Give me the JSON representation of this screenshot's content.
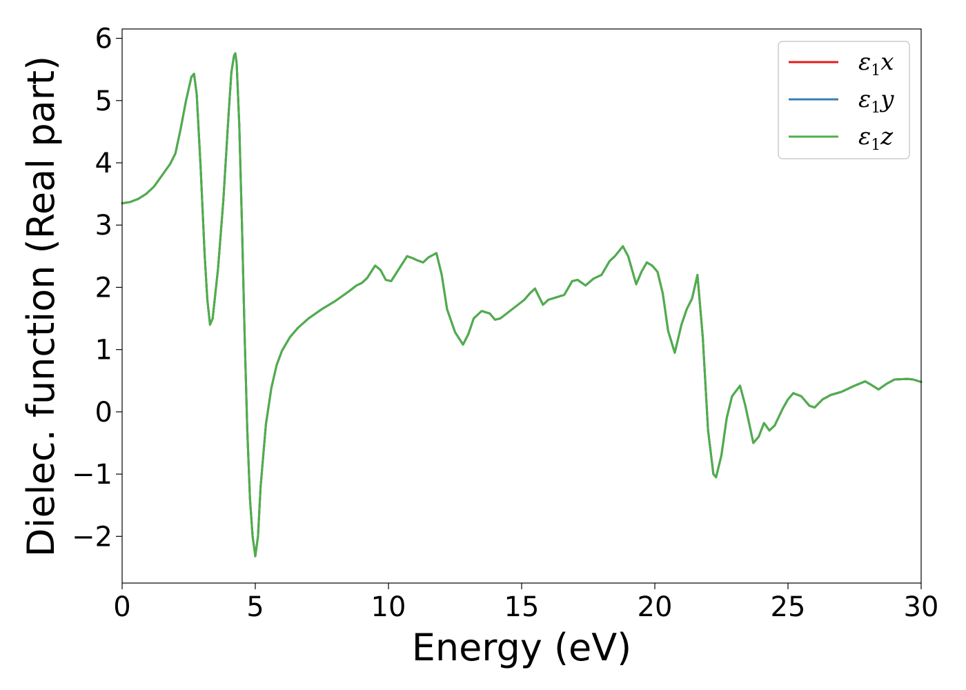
{
  "chart_data": {
    "type": "line",
    "title": "",
    "xlabel": "Energy (eV)",
    "ylabel": "Dielec. function (Real part)",
    "xlim": [
      0,
      30
    ],
    "ylim": [
      -2.75,
      6.15
    ],
    "xticks": [
      0,
      5,
      10,
      15,
      20,
      25,
      30
    ],
    "yticks": [
      -2,
      -1,
      0,
      1,
      2,
      3,
      4,
      5,
      6
    ],
    "xtick_labels": [
      "0",
      "5",
      "10",
      "15",
      "20",
      "25",
      "30"
    ],
    "ytick_labels": [
      "−2",
      "−1",
      "0",
      "1",
      "2",
      "3",
      "4",
      "5",
      "6"
    ],
    "grid": false,
    "legend_position": "top-right",
    "legend": [
      {
        "symbol": "ε",
        "sub": "1",
        "suffix": "x",
        "color": "#e41a1c"
      },
      {
        "symbol": "ε",
        "sub": "1",
        "suffix": "y",
        "color": "#377eb8"
      },
      {
        "symbol": "ε",
        "sub": "1",
        "suffix": "z",
        "color": "#4daf4a"
      }
    ],
    "series": [
      {
        "color": "#e41a1c",
        "values_ref": "shared"
      },
      {
        "color": "#377eb8",
        "values_ref": "shared"
      },
      {
        "color": "#4daf4a",
        "values_ref": "shared"
      }
    ],
    "x": [
      0,
      0.3,
      0.6,
      0.9,
      1.2,
      1.5,
      1.8,
      2.0,
      2.2,
      2.4,
      2.6,
      2.7,
      2.8,
      2.95,
      3.1,
      3.2,
      3.3,
      3.4,
      3.6,
      3.8,
      4.0,
      4.1,
      4.2,
      4.25,
      4.3,
      4.4,
      4.5,
      4.6,
      4.7,
      4.8,
      4.9,
      5.0,
      5.1,
      5.2,
      5.4,
      5.6,
      5.8,
      6.0,
      6.3,
      6.6,
      7.0,
      7.5,
      8.0,
      8.5,
      8.8,
      9.0,
      9.2,
      9.5,
      9.7,
      9.9,
      10.1,
      10.4,
      10.7,
      10.9,
      11.1,
      11.3,
      11.5,
      11.8,
      12.0,
      12.2,
      12.5,
      12.8,
      13.0,
      13.2,
      13.5,
      13.8,
      14.0,
      14.2,
      14.5,
      14.8,
      15.1,
      15.3,
      15.5,
      15.8,
      16.0,
      16.3,
      16.6,
      16.9,
      17.1,
      17.4,
      17.7,
      18.0,
      18.3,
      18.5,
      18.8,
      19.0,
      19.3,
      19.5,
      19.7,
      19.9,
      20.1,
      20.3,
      20.5,
      20.75,
      21.0,
      21.2,
      21.4,
      21.6,
      21.8,
      22.0,
      22.2,
      22.3,
      22.5,
      22.7,
      22.9,
      23.2,
      23.4,
      23.7,
      23.9,
      24.1,
      24.3,
      24.5,
      24.8,
      25.0,
      25.2,
      25.5,
      25.8,
      26.0,
      26.3,
      26.6,
      27.0,
      27.5,
      27.9,
      28.1,
      28.4,
      28.7,
      29.0,
      29.5,
      29.7,
      30.0
    ],
    "y": [
      3.35,
      3.37,
      3.42,
      3.5,
      3.62,
      3.8,
      3.98,
      4.15,
      4.55,
      5.0,
      5.38,
      5.43,
      5.1,
      3.9,
      2.5,
      1.8,
      1.4,
      1.5,
      2.3,
      3.4,
      4.8,
      5.45,
      5.72,
      5.76,
      5.6,
      4.6,
      3.0,
      1.2,
      -0.3,
      -1.4,
      -2.0,
      -2.32,
      -2.0,
      -1.2,
      -0.2,
      0.38,
      0.75,
      0.98,
      1.2,
      1.35,
      1.5,
      1.65,
      1.78,
      1.93,
      2.03,
      2.07,
      2.15,
      2.35,
      2.28,
      2.12,
      2.1,
      2.3,
      2.5,
      2.47,
      2.43,
      2.4,
      2.48,
      2.55,
      2.2,
      1.65,
      1.28,
      1.08,
      1.25,
      1.5,
      1.62,
      1.58,
      1.48,
      1.5,
      1.6,
      1.7,
      1.8,
      1.9,
      1.98,
      1.72,
      1.8,
      1.84,
      1.88,
      2.1,
      2.12,
      2.03,
      2.14,
      2.2,
      2.42,
      2.5,
      2.66,
      2.5,
      2.05,
      2.25,
      2.4,
      2.35,
      2.25,
      1.9,
      1.3,
      0.95,
      1.4,
      1.65,
      1.82,
      2.2,
      1.2,
      -0.3,
      -1.0,
      -1.05,
      -0.7,
      -0.1,
      0.25,
      0.42,
      0.1,
      -0.5,
      -0.4,
      -0.18,
      -0.3,
      -0.22,
      0.05,
      0.2,
      0.3,
      0.25,
      0.1,
      0.07,
      0.2,
      0.27,
      0.32,
      0.42,
      0.49,
      0.44,
      0.36,
      0.45,
      0.52,
      0.53,
      0.52,
      0.48
    ]
  }
}
